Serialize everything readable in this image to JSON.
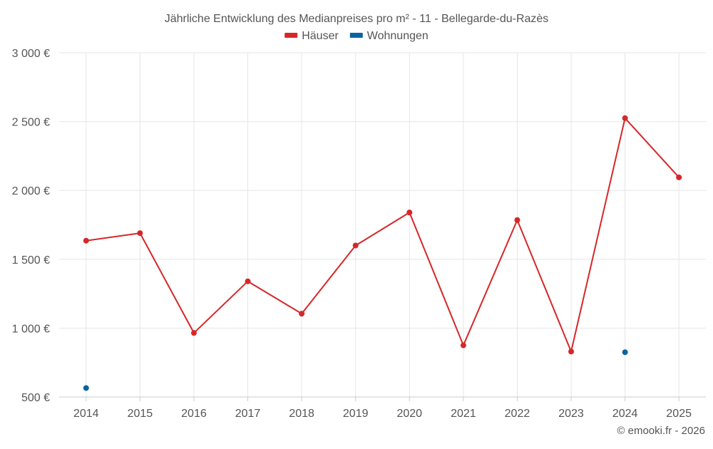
{
  "chart_data": {
    "type": "line",
    "title": "Jährliche Entwicklung des Medianpreises pro m² - 11 - Bellegarde-du-Razès",
    "categories": [
      "2014",
      "2015",
      "2016",
      "2017",
      "2018",
      "2019",
      "2020",
      "2021",
      "2022",
      "2023",
      "2024",
      "2025"
    ],
    "series": [
      {
        "name": "Häuser",
        "color": "#d62728",
        "values": [
          1635,
          1690,
          965,
          1340,
          1105,
          1600,
          1840,
          875,
          1785,
          830,
          2525,
          2095
        ]
      },
      {
        "name": "Wohnungen",
        "color": "#0a64a0",
        "values": [
          565,
          null,
          null,
          null,
          null,
          null,
          null,
          null,
          null,
          null,
          825,
          null
        ]
      }
    ],
    "ylim": [
      500,
      3000
    ],
    "yticks": [
      500,
      1000,
      1500,
      2000,
      2500,
      3000
    ],
    "ytick_labels": [
      "500 €",
      "1 000 €",
      "1 500 €",
      "2 000 €",
      "2 500 €",
      "3 000 €"
    ],
    "grid": true,
    "legend_position": "top-center",
    "credit": "© emooki.fr - 2026"
  }
}
